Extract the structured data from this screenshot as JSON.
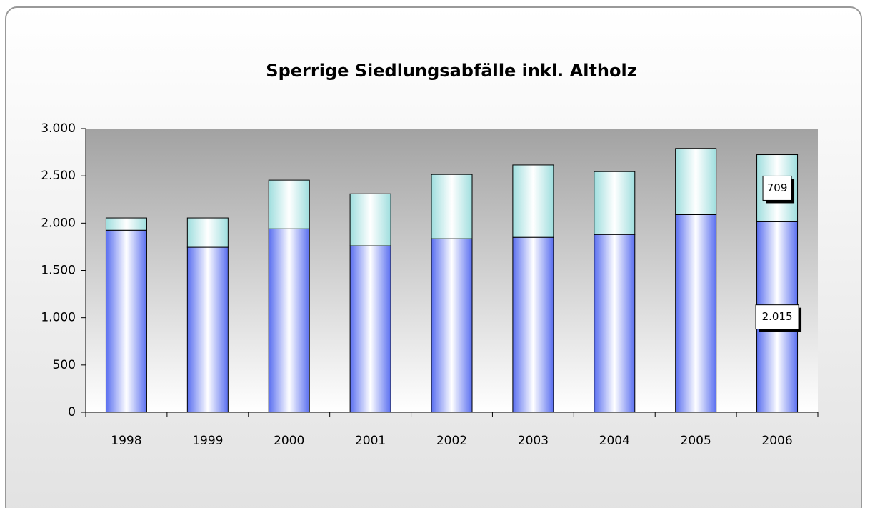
{
  "chart_data": {
    "type": "stacked-bar",
    "title": "Sperrige Siedlungsabfälle inkl. Altholz",
    "categories": [
      "1998",
      "1999",
      "2000",
      "2001",
      "2002",
      "2003",
      "2004",
      "2005",
      "2006"
    ],
    "series": [
      {
        "color": "#5a6ff0",
        "values": [
          1925,
          1745,
          1940,
          1760,
          1835,
          1850,
          1880,
          2090,
          2015
        ],
        "value_labels": [
          null,
          null,
          null,
          null,
          null,
          null,
          null,
          null,
          "2.015"
        ]
      },
      {
        "color": "#9fdede",
        "values": [
          130,
          310,
          515,
          550,
          680,
          765,
          665,
          700,
          709
        ],
        "value_labels": [
          null,
          null,
          null,
          null,
          null,
          null,
          null,
          null,
          "709"
        ]
      }
    ],
    "ylim": [
      0,
      3000
    ],
    "yticks": [
      0,
      500,
      {
        "value": 1000,
        "label": "1.000"
      },
      {
        "value": 1500,
        "label": "1.500"
      },
      {
        "value": 2000,
        "label": "2.000"
      },
      {
        "value": 2500,
        "label": "2.500"
      },
      {
        "value": 3000,
        "label": "3.000"
      }
    ],
    "grid": false
  }
}
